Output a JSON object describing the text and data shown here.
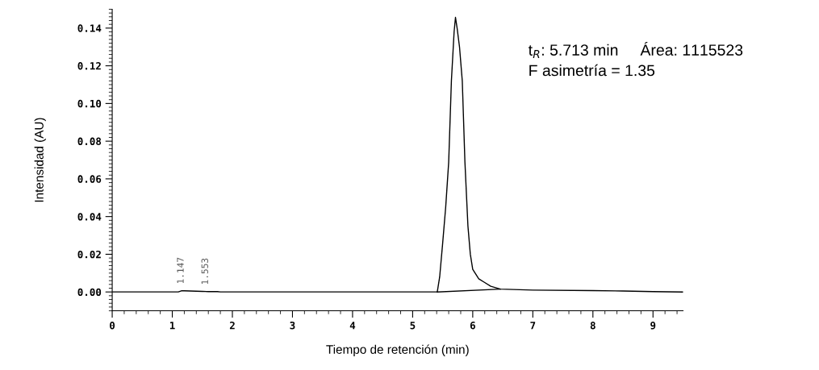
{
  "chart_data": {
    "type": "line",
    "xlabel": "Tiempo de retención (min)",
    "ylabel": "Intensidad (AU)",
    "xlim": [
      0,
      9.5
    ],
    "ylim": [
      -0.01,
      0.15
    ],
    "xticks": [
      0,
      1,
      2,
      3,
      4,
      5,
      6,
      7,
      8,
      9
    ],
    "yticks": [
      {
        "value": 0,
        "label": "0.00"
      },
      {
        "value": 0.02,
        "label": "0.02"
      },
      {
        "value": 0.04,
        "label": "0.04"
      },
      {
        "value": 0.06,
        "label": "0.06"
      },
      {
        "value": 0.08,
        "label": "0.08"
      },
      {
        "value": 0.1,
        "label": "0.10"
      },
      {
        "value": 0.12,
        "label": "0.12"
      },
      {
        "value": 0.14,
        "label": "0.14"
      }
    ],
    "grid": false,
    "legend": false,
    "marker": "none",
    "line_style": "solid",
    "series": [
      {
        "color": "#000000",
        "x": [
          0,
          1.1,
          1.15,
          1.2,
          1.3,
          1.5,
          1.6,
          1.75,
          1.8,
          5.0,
          5.41,
          5.45,
          5.5,
          5.55,
          5.6,
          5.645,
          5.69,
          5.713,
          5.74,
          5.78,
          5.826,
          5.87,
          5.92,
          5.96,
          6.0,
          6.1,
          6.2,
          6.3,
          6.46,
          7.0,
          8.0,
          8.5,
          9.0,
          9.5
        ],
        "values": [
          0,
          0,
          0.0006,
          0.0006,
          0.0005,
          0.0003,
          0.0002,
          0.0002,
          0,
          0,
          0,
          0.008,
          0.026,
          0.045,
          0.069,
          0.112,
          0.138,
          0.1457,
          0.14,
          0.13,
          0.112,
          0.069,
          0.035,
          0.02,
          0.012,
          0.007,
          0.005,
          0.003,
          0.0015,
          0.001,
          0.0007,
          0.0005,
          0.0002,
          0
        ]
      },
      {
        "color": "#000000",
        "x": [
          5.41,
          6.46
        ],
        "values": [
          0,
          0.0015
        ]
      }
    ],
    "annotations": [
      {
        "text": "1.147",
        "x": 1.147,
        "y": 0.0006
      },
      {
        "text": "1.553",
        "x": 1.553,
        "y": 0.0002
      },
      "t$_{R}$: 5.713 min     Área: 1115523",
      "F asimetría = 1.35"
    ]
  }
}
